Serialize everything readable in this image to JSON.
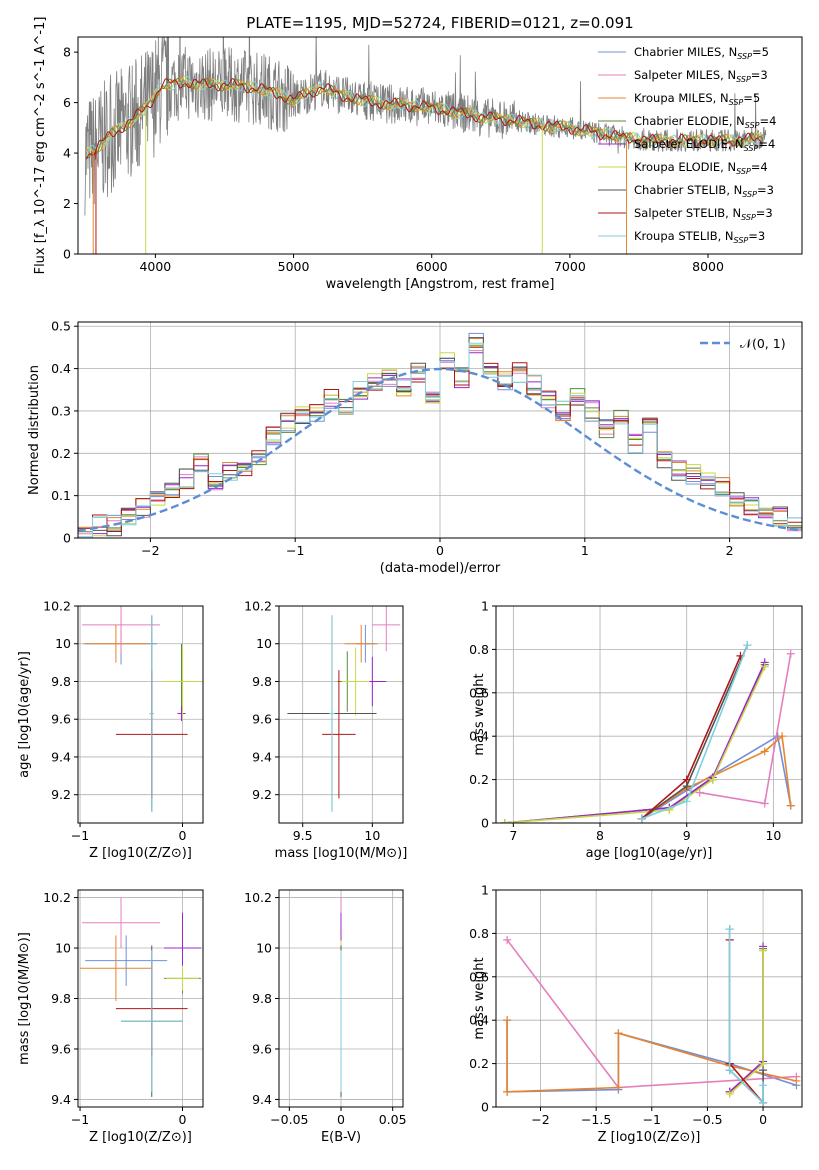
{
  "figure_title": "PLATE=1195, MJD=52724, FIBERID=0121, z=0.091",
  "colors": {
    "Chabrier MILES": "#6f8fdc",
    "Salpeter MILES": "#e67ebd",
    "Kroupa MILES": "#e8842c",
    "Chabrier ELODIE": "#5a8a3a",
    "Salpeter ELODIE": "#9b27c8",
    "Kroupa ELODIE": "#c8d84a",
    "Chabrier STELIB": "#555555",
    "Salpeter STELIB": "#b01515",
    "Kroupa STELIB": "#7fcfe0",
    "normal": "#5b8ed6"
  },
  "chart_data": [
    {
      "id": "spectrum",
      "type": "line",
      "title": "",
      "xlabel": "wavelength [Angstrom, rest frame]",
      "ylabel": "Flux [f_λ 10^-17 erg cm^-2 s^-1 A^-1]",
      "xlim": [
        3440,
        8680
      ],
      "ylim": [
        0,
        8.6
      ],
      "xticks": [
        4000,
        5000,
        6000,
        7000,
        8000
      ],
      "yticks": [
        0,
        2,
        4,
        6,
        8
      ],
      "grid": false,
      "legend_position": "upper-right",
      "series": [
        {
          "name": "Chabrier MILES",
          "nssp": 5
        },
        {
          "name": "Salpeter MILES",
          "nssp": 3
        },
        {
          "name": "Kroupa MILES",
          "nssp": 5
        },
        {
          "name": "Chabrier ELODIE",
          "nssp": 4
        },
        {
          "name": "Salpeter ELODIE",
          "nssp": 4
        },
        {
          "name": "Kroupa ELODIE",
          "nssp": 4
        },
        {
          "name": "Chabrier STELIB",
          "nssp": 3
        },
        {
          "name": "Salpeter STELIB",
          "nssp": 3
        },
        {
          "name": "Kroupa STELIB",
          "nssp": 3
        }
      ],
      "continuum_points": [
        [
          3480,
          3.9
        ],
        [
          3560,
          4.1
        ],
        [
          3650,
          4.6
        ],
        [
          3750,
          5.0
        ],
        [
          3850,
          5.4
        ],
        [
          3950,
          5.9
        ],
        [
          4050,
          6.7
        ],
        [
          4200,
          6.8
        ],
        [
          4400,
          6.7
        ],
        [
          4600,
          6.7
        ],
        [
          4800,
          6.5
        ],
        [
          5000,
          6.1
        ],
        [
          5200,
          6.6
        ],
        [
          5400,
          6.2
        ],
        [
          5600,
          6.0
        ],
        [
          5800,
          5.9
        ],
        [
          6000,
          5.8
        ],
        [
          6200,
          5.6
        ],
        [
          6400,
          5.4
        ],
        [
          6600,
          5.3
        ],
        [
          6800,
          5.1
        ],
        [
          7000,
          5.0
        ],
        [
          7200,
          4.8
        ],
        [
          7400,
          4.6
        ],
        [
          7600,
          4.5
        ],
        [
          7800,
          4.5
        ],
        [
          8000,
          4.5
        ],
        [
          8200,
          4.5
        ],
        [
          8400,
          4.6
        ]
      ]
    },
    {
      "id": "residuals",
      "type": "histogram",
      "xlabel": "(data-model)/error",
      "ylabel": "Normed distribution",
      "xlim": [
        -2.5,
        2.5
      ],
      "ylim": [
        0,
        0.51
      ],
      "xticks": [
        -2,
        -1,
        0,
        1,
        2
      ],
      "yticks": [
        0.0,
        0.1,
        0.2,
        0.3,
        0.4,
        0.5
      ],
      "grid": true,
      "legend_position": "upper-right",
      "legend_label": "𝒩(0, 1)",
      "bin_edges_start": -2.5,
      "bin_width": 0.1,
      "bin_values": [
        0.02,
        0.03,
        0.03,
        0.05,
        0.07,
        0.09,
        0.12,
        0.14,
        0.18,
        0.13,
        0.16,
        0.17,
        0.19,
        0.24,
        0.27,
        0.29,
        0.3,
        0.33,
        0.31,
        0.35,
        0.37,
        0.38,
        0.36,
        0.39,
        0.34,
        0.42,
        0.38,
        0.46,
        0.4,
        0.37,
        0.39,
        0.36,
        0.33,
        0.3,
        0.33,
        0.3,
        0.26,
        0.29,
        0.22,
        0.27,
        0.19,
        0.16,
        0.15,
        0.14,
        0.12,
        0.09,
        0.07,
        0.05,
        0.05,
        0.03
      ]
    },
    {
      "id": "age_vs_Z",
      "type": "errorbar",
      "xlabel": "Z [log10(Z/Z⊙)]",
      "ylabel": "age  [log10(age/yr)]",
      "xlim": [
        -1.02,
        0.2
      ],
      "ylim": [
        9.05,
        10.2
      ],
      "xticks": [
        -1,
        0
      ],
      "yticks": [
        9.2,
        9.4,
        9.6,
        9.8,
        10.0,
        10.2
      ],
      "grid": true,
      "points": [
        {
          "series": "Chabrier MILES",
          "x": -0.6,
          "y": 10.0,
          "xerr": 0.35,
          "yerr": 0.11
        },
        {
          "series": "Salpeter MILES",
          "x": -0.6,
          "y": 10.1,
          "xerr": 0.38,
          "yerr": 0.15
        },
        {
          "series": "Kroupa MILES",
          "x": -0.65,
          "y": 10.0,
          "xerr": 0.32,
          "yerr": 0.1
        },
        {
          "series": "Chabrier ELODIE",
          "x": -0.01,
          "y": 9.8,
          "xerr": 0.03,
          "yerr": 0.2
        },
        {
          "series": "Salpeter ELODIE",
          "x": -0.01,
          "y": 9.63,
          "xerr": 0.04,
          "yerr": 0.04
        },
        {
          "series": "Kroupa ELODIE",
          "x": 0.0,
          "y": 9.8,
          "xerr": 0.19,
          "yerr": 0.19
        },
        {
          "series": "Chabrier STELIB",
          "x": -0.3,
          "y": 9.63,
          "xerr": 0.02,
          "yerr": 0.52
        },
        {
          "series": "Salpeter STELIB",
          "x": -0.3,
          "y": 9.52,
          "xerr": 0.35,
          "yerr": 0.34
        },
        {
          "series": "Kroupa STELIB",
          "x": -0.3,
          "y": 9.63,
          "xerr": 0.02,
          "yerr": 0.52
        }
      ]
    },
    {
      "id": "age_vs_mass",
      "type": "errorbar",
      "xlabel": "mass [log10(M/M⊙)]",
      "ylabel": "",
      "xlim": [
        9.33,
        10.22
      ],
      "ylim": [
        9.05,
        10.2
      ],
      "xticks": [
        9.5,
        10.0
      ],
      "yticks": [
        9.2,
        9.4,
        9.6,
        9.8,
        10.0,
        10.2
      ],
      "grid": true,
      "points": [
        {
          "series": "Chabrier MILES",
          "x": 9.95,
          "y": 10.0,
          "xerr": 0.07,
          "yerr": 0.1
        },
        {
          "series": "Salpeter MILES",
          "x": 10.1,
          "y": 10.1,
          "xerr": 0.1,
          "yerr": 0.14
        },
        {
          "series": "Kroupa MILES",
          "x": 9.92,
          "y": 10.0,
          "xerr": 0.12,
          "yerr": 0.1
        },
        {
          "series": "Chabrier ELODIE",
          "x": 9.82,
          "y": 9.8,
          "xerr": 0.07,
          "yerr": 0.16
        },
        {
          "series": "Salpeter ELODIE",
          "x": 10.0,
          "y": 9.8,
          "xerr": 0.1,
          "yerr": 0.13
        },
        {
          "series": "Kroupa ELODIE",
          "x": 9.88,
          "y": 9.8,
          "xerr": 0.1,
          "yerr": 0.18
        },
        {
          "series": "Chabrier STELIB",
          "x": 9.71,
          "y": 9.63,
          "xerr": 0.32,
          "yerr": 0.52
        },
        {
          "series": "Salpeter STELIB",
          "x": 9.76,
          "y": 9.52,
          "xerr": 0.12,
          "yerr": 0.34
        },
        {
          "series": "Kroupa STELIB",
          "x": 9.71,
          "y": 9.63,
          "xerr": 0.02,
          "yerr": 0.52
        }
      ]
    },
    {
      "id": "weight_vs_age",
      "type": "line",
      "xlabel": "age  [log10(age/yr)]",
      "ylabel": "mass weight",
      "xlim": [
        6.8,
        10.33
      ],
      "ylim": [
        0,
        1.0
      ],
      "xticks": [
        7,
        8,
        9,
        10
      ],
      "yticks": [
        0.0,
        0.2,
        0.4,
        0.6,
        0.8,
        1.0
      ],
      "grid": true,
      "series": [
        {
          "name": "Chabrier MILES",
          "x": [
            8.48,
            9.0,
            10.05,
            10.2
          ],
          "y": [
            0.02,
            0.15,
            0.4,
            0.08
          ]
        },
        {
          "name": "Salpeter MILES",
          "x": [
            9.15,
            9.9,
            10.2
          ],
          "y": [
            0.14,
            0.09,
            0.78
          ]
        },
        {
          "name": "Kroupa MILES",
          "x": [
            8.48,
            9.0,
            9.9,
            10.1,
            10.2
          ],
          "y": [
            0.02,
            0.16,
            0.33,
            0.4,
            0.08
          ]
        },
        {
          "name": "Chabrier ELODIE",
          "x": [
            6.9,
            8.8,
            9.3,
            9.9
          ],
          "y": [
            0.0,
            0.07,
            0.2,
            0.73
          ]
        },
        {
          "name": "Salpeter ELODIE",
          "x": [
            6.9,
            8.8,
            9.3,
            9.9
          ],
          "y": [
            0.0,
            0.07,
            0.21,
            0.74
          ]
        },
        {
          "name": "Kroupa ELODIE",
          "x": [
            6.9,
            8.8,
            9.3,
            9.9
          ],
          "y": [
            0.0,
            0.06,
            0.2,
            0.72
          ]
        },
        {
          "name": "Chabrier STELIB",
          "x": [
            8.48,
            9.0,
            9.7
          ],
          "y": [
            0.02,
            0.17,
            0.82
          ]
        },
        {
          "name": "Salpeter STELIB",
          "x": [
            8.48,
            9.0,
            9.62
          ],
          "y": [
            0.02,
            0.2,
            0.77
          ]
        },
        {
          "name": "Kroupa STELIB",
          "x": [
            8.48,
            9.0,
            9.7
          ],
          "y": [
            0.02,
            0.1,
            0.82
          ]
        }
      ]
    },
    {
      "id": "mass_vs_Z",
      "type": "errorbar",
      "xlabel": "Z [log10(Z/Z⊙)]",
      "ylabel": "mass [log10(M/M⊙)]",
      "xlim": [
        -1.02,
        0.2
      ],
      "ylim": [
        9.37,
        10.23
      ],
      "xticks": [
        -1,
        0
      ],
      "yticks": [
        9.4,
        9.6,
        9.8,
        10.0,
        10.2
      ],
      "grid": true,
      "points": [
        {
          "series": "Chabrier MILES",
          "x": -0.55,
          "y": 9.95,
          "xerr": 0.4,
          "yerr": 0.1
        },
        {
          "series": "Salpeter MILES",
          "x": -0.6,
          "y": 10.1,
          "xerr": 0.38,
          "yerr": 0.1
        },
        {
          "series": "Kroupa MILES",
          "x": -0.65,
          "y": 9.92,
          "xerr": 0.35,
          "yerr": 0.13
        },
        {
          "series": "Chabrier ELODIE",
          "x": 0.0,
          "y": 9.88,
          "xerr": 0.18,
          "yerr": 0.06
        },
        {
          "series": "Salpeter ELODIE",
          "x": 0.0,
          "y": 10.0,
          "xerr": 0.18,
          "yerr": 0.14
        },
        {
          "series": "Kroupa ELODIE",
          "x": 0.0,
          "y": 9.88,
          "xerr": 0.16,
          "yerr": 0.05
        },
        {
          "series": "Chabrier STELIB",
          "x": -0.3,
          "y": 9.71,
          "xerr": 0.3,
          "yerr": 0.3
        },
        {
          "series": "Salpeter STELIB",
          "x": -0.3,
          "y": 9.76,
          "xerr": 0.35,
          "yerr": 0.19
        },
        {
          "series": "Kroupa STELIB",
          "x": -0.3,
          "y": 9.71,
          "xerr": 0.3,
          "yerr": 0.28
        }
      ]
    },
    {
      "id": "mass_vs_ebv",
      "type": "errorbar",
      "xlabel": "E(B-V)",
      "ylabel": "",
      "xlim": [
        -0.06,
        0.06
      ],
      "ylim": [
        9.37,
        10.23
      ],
      "xticks": [
        -0.05,
        0.0,
        0.05
      ],
      "yticks": [
        9.4,
        9.6,
        9.8,
        10.0,
        10.2
      ],
      "grid": true,
      "points": [
        {
          "series": "Chabrier MILES",
          "x": 0.0,
          "y": 9.95,
          "xerr": 0,
          "yerr": 0.1
        },
        {
          "series": "Salpeter MILES",
          "x": 0.0,
          "y": 10.1,
          "xerr": 0,
          "yerr": 0.1
        },
        {
          "series": "Kroupa MILES",
          "x": 0.0,
          "y": 9.92,
          "xerr": 0,
          "yerr": 0.13
        },
        {
          "series": "Chabrier ELODIE",
          "x": 0.0,
          "y": 9.88,
          "xerr": 0,
          "yerr": 0.06
        },
        {
          "series": "Salpeter ELODIE",
          "x": 0.0,
          "y": 10.0,
          "xerr": 0,
          "yerr": 0.14
        },
        {
          "series": "Kroupa ELODIE",
          "x": 0.0,
          "y": 9.88,
          "xerr": 0,
          "yerr": 0.15
        },
        {
          "series": "Chabrier STELIB",
          "x": 0.0,
          "y": 9.71,
          "xerr": 0,
          "yerr": 0.3
        },
        {
          "series": "Salpeter STELIB",
          "x": 0.0,
          "y": 9.76,
          "xerr": 0,
          "yerr": 0.19
        },
        {
          "series": "Kroupa STELIB",
          "x": 0.0,
          "y": 9.71,
          "xerr": 0,
          "yerr": 0.28
        }
      ]
    },
    {
      "id": "weight_vs_Z",
      "type": "line",
      "xlabel": "Z [log10(Z/Z⊙)]",
      "ylabel": "mass weight",
      "xlim": [
        -2.4,
        0.35
      ],
      "ylim": [
        0,
        1.0
      ],
      "xticks": [
        -2.0,
        -1.5,
        -1.0,
        -0.5,
        0.0
      ],
      "yticks": [
        0.0,
        0.2,
        0.4,
        0.6,
        0.8,
        1.0
      ],
      "grid": true,
      "series": [
        {
          "name": "Chabrier MILES",
          "x": [
            -2.3,
            -2.3,
            -1.3,
            -1.3,
            -0.3,
            0.3
          ],
          "y": [
            0.4,
            0.07,
            0.08,
            0.34,
            0.2,
            0.1
          ]
        },
        {
          "name": "Salpeter MILES",
          "x": [
            -2.3,
            -1.3,
            0.3
          ],
          "y": [
            0.77,
            0.09,
            0.14
          ]
        },
        {
          "name": "Kroupa MILES",
          "x": [
            -2.3,
            -2.3,
            -1.3,
            -1.3,
            -0.3,
            0.3
          ],
          "y": [
            0.4,
            0.07,
            0.09,
            0.34,
            0.19,
            0.12
          ]
        },
        {
          "name": "Chabrier ELODIE",
          "x": [
            -0.3,
            0.0,
            0.0
          ],
          "y": [
            0.07,
            0.2,
            0.73
          ]
        },
        {
          "name": "Salpeter ELODIE",
          "x": [
            -0.3,
            0.0,
            0.0
          ],
          "y": [
            0.07,
            0.21,
            0.74
          ]
        },
        {
          "name": "Kroupa ELODIE",
          "x": [
            -0.3,
            0.0,
            0.0
          ],
          "y": [
            0.06,
            0.2,
            0.72
          ]
        },
        {
          "name": "Chabrier STELIB",
          "x": [
            -0.3,
            -0.3,
            0.0,
            0.0
          ],
          "y": [
            0.82,
            0.17,
            0.02,
            0.17
          ]
        },
        {
          "name": "Salpeter STELIB",
          "x": [
            -0.3,
            -0.3,
            0.0
          ],
          "y": [
            0.77,
            0.2,
            0.02
          ]
        },
        {
          "name": "Kroupa STELIB",
          "x": [
            -0.3,
            -0.3,
            0.0,
            0.0
          ],
          "y": [
            0.82,
            0.17,
            0.02,
            0.1
          ]
        }
      ]
    }
  ]
}
